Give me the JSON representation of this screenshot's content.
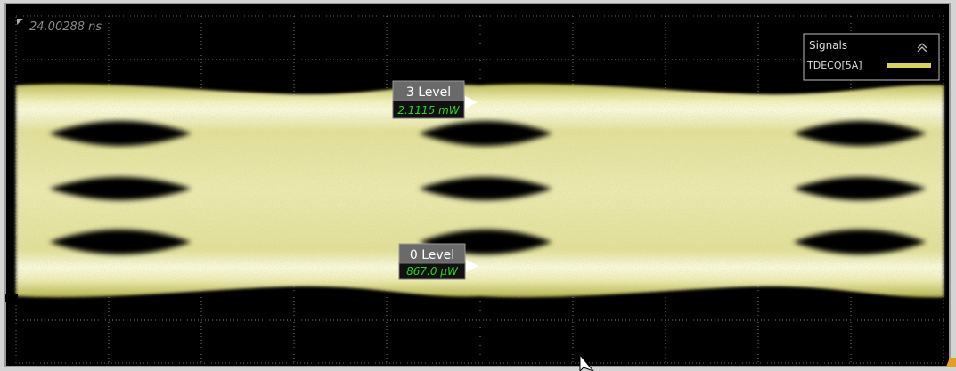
{
  "timestamp": "24.00288 ns",
  "legend": {
    "title": "Signals",
    "signal": "TDECQ[5A]"
  },
  "markers": [
    {
      "label": "3 Level",
      "value": "2.1115 mW"
    },
    {
      "label": "0 Level",
      "value": "867.0 µW"
    }
  ]
}
